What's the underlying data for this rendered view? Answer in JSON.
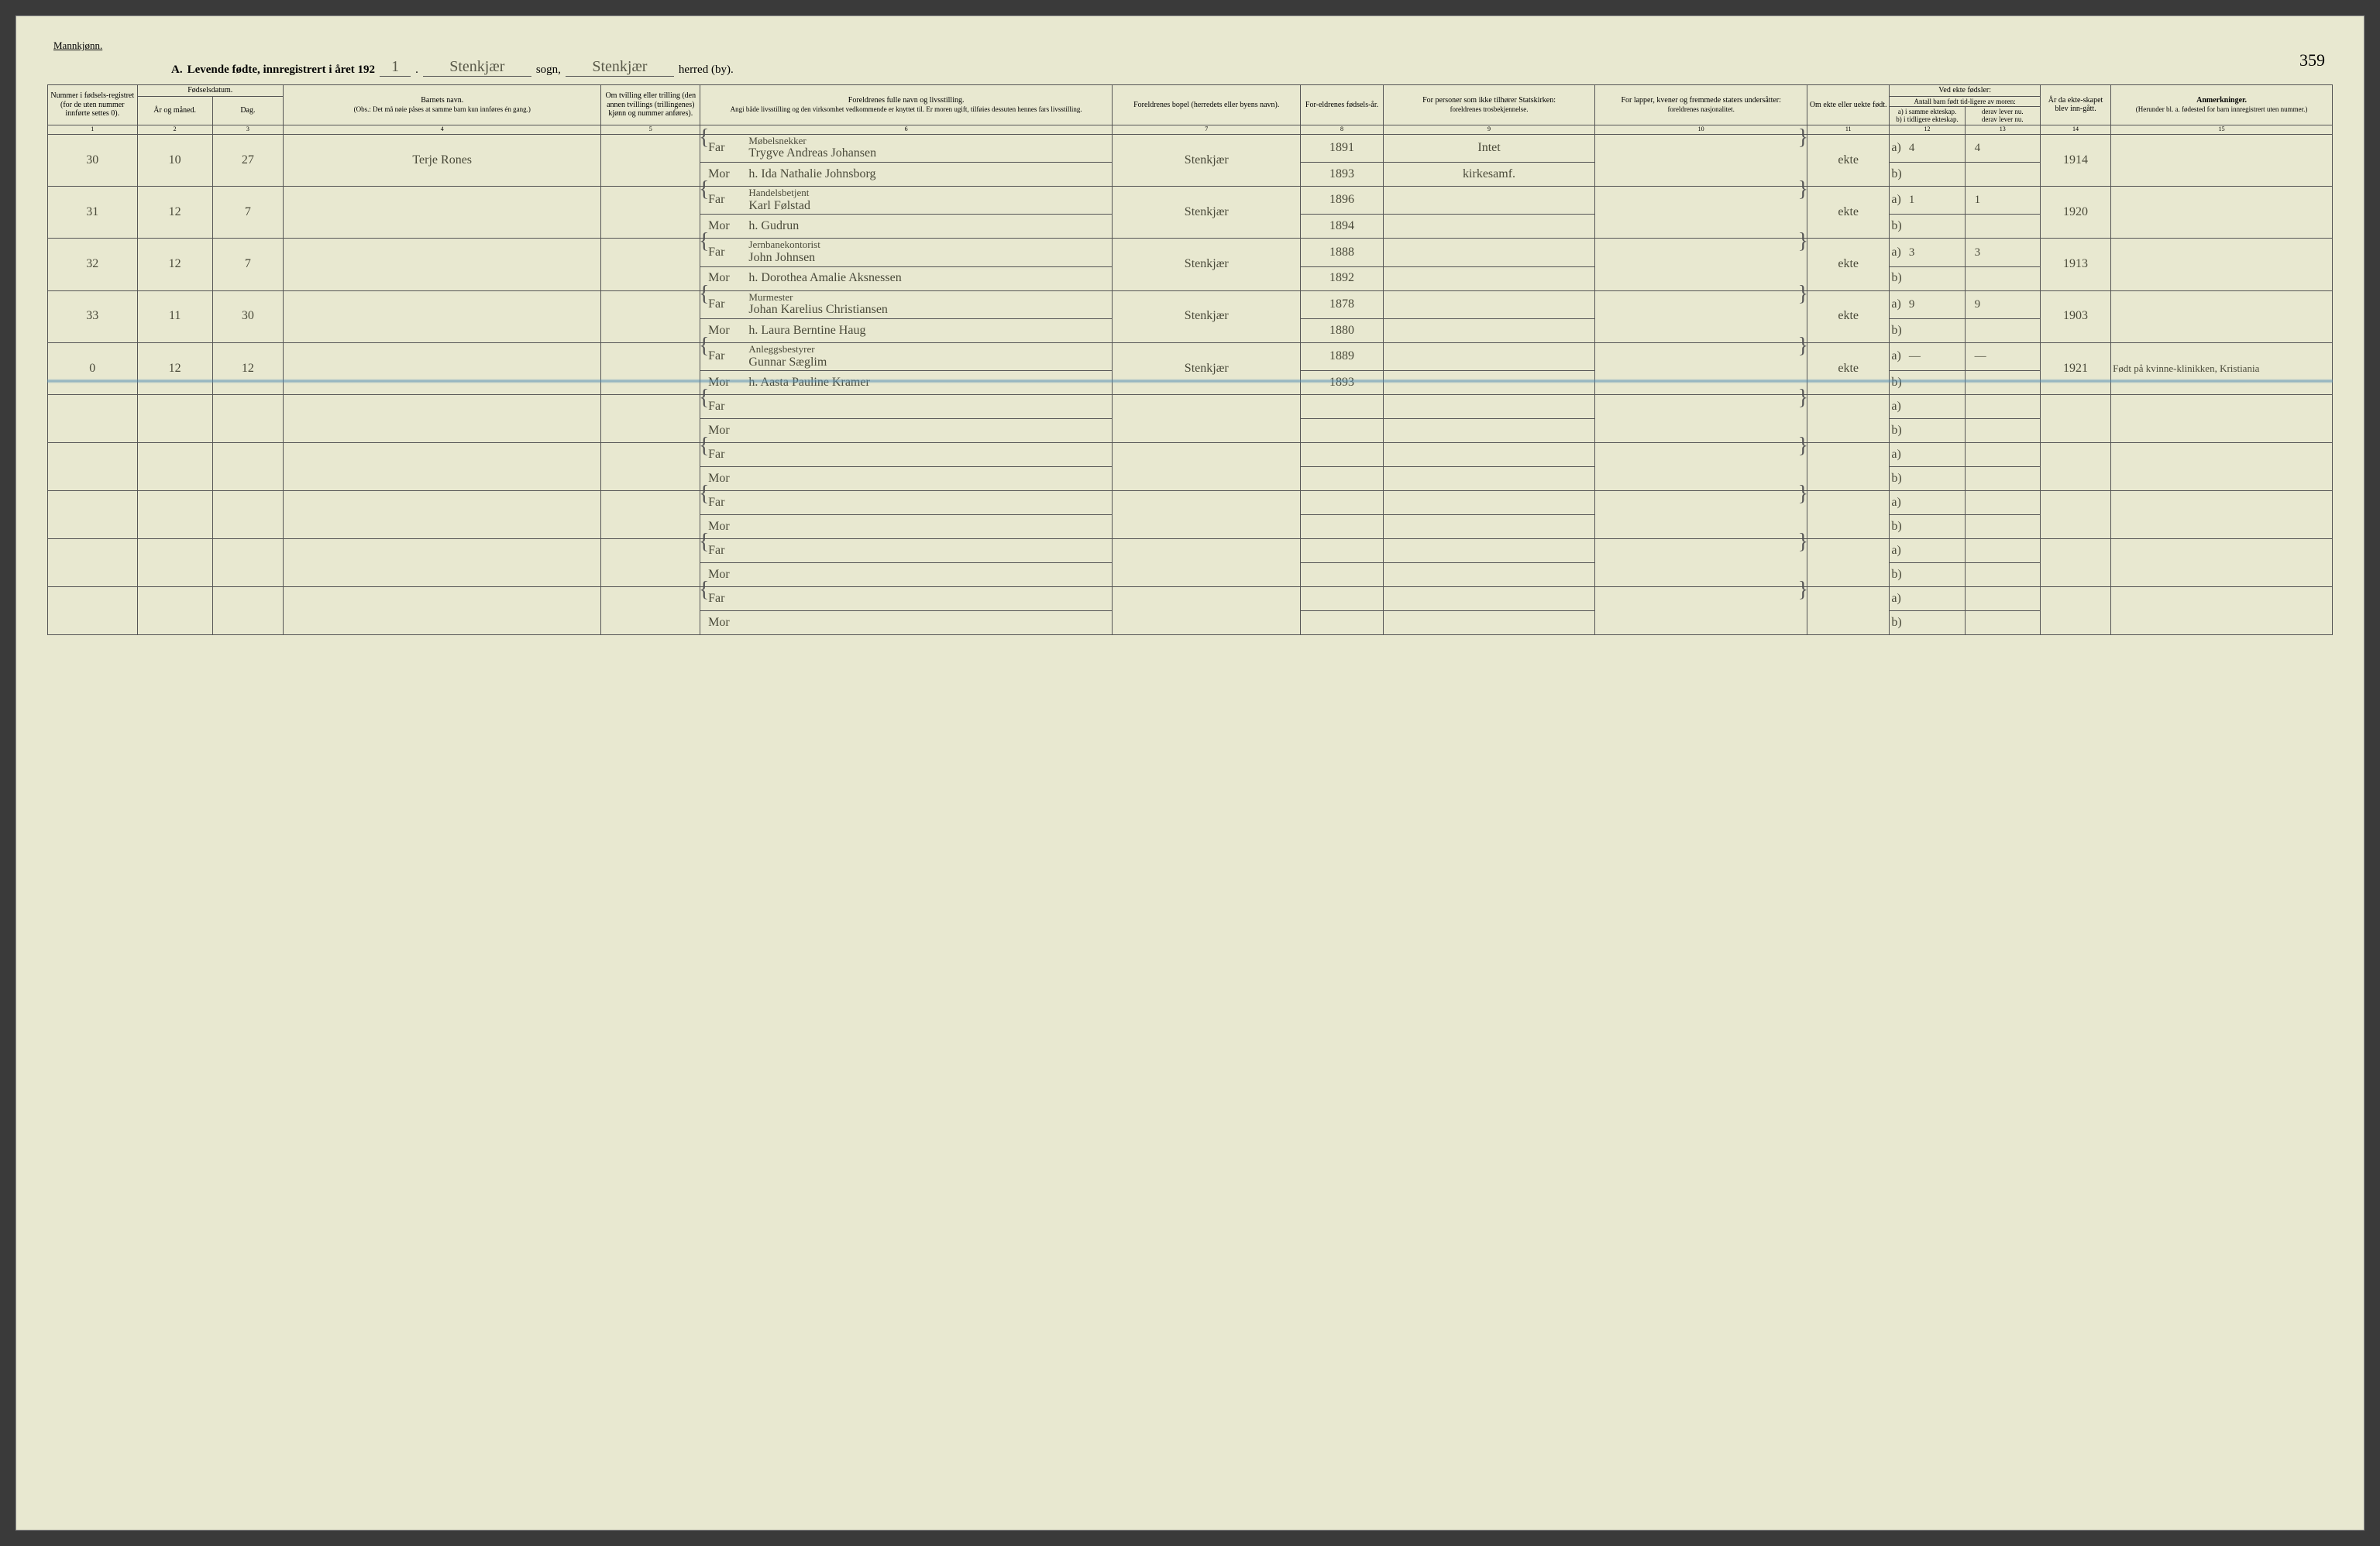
{
  "page": {
    "gender_label": "Mannkjønn.",
    "title_prefix": "A.",
    "title_main": "Levende fødte, innregistrert i året 192",
    "year_handwritten": "1",
    "sogn_label": "sogn,",
    "sogn_value": "Stenkjær",
    "herred_label": "herred (by).",
    "herred_value": "Stenkjær",
    "page_number": "359"
  },
  "headers": {
    "c1": "Nummer i fødsels-registret (for de uten nummer innførte settes 0).",
    "c2_group": "Fødselsdatum.",
    "c2a": "År og måned.",
    "c2b": "Dag.",
    "c4_top": "Barnets navn.",
    "c4_sub": "(Obs.: Det må nøie påses at samme barn kun innføres én gang.)",
    "c5": "Om tvilling eller trilling (den annen tvillings (trillingenes) kjønn og nummer anføres).",
    "c6_top": "Foreldrenes fulle navn og livsstilling.",
    "c6_sub": "Angi både livsstilling og den virksomhet vedkommende er knyttet til. Er moren ugift, tilføies dessuten hennes fars livsstilling.",
    "c7": "Foreldrenes bopel (herredets eller byens navn).",
    "c8": "For-eldrenes fødsels-år.",
    "c9_top": "For personer som ikke tilhører Statskirken:",
    "c9_sub": "foreldrenes trosbekjennelse.",
    "c10_top": "For lapper, kvener og fremmede staters undersåtter:",
    "c10_sub": "foreldrenes nasjonalitet.",
    "c11": "Om ekte eller uekte født.",
    "c12_top": "Ved ekte fødsler:",
    "c12_sub": "Antall barn født tid-ligere av moren:",
    "c12a": "a) i samme ekteskap.",
    "c12b": "b) i tidligere ekteskap.",
    "c13a": "derav lever nu.",
    "c13b": "derav lever nu.",
    "c14": "År da ekte-skapet blev inn-gått.",
    "c15_top": "Anmerkninger.",
    "c15_sub": "(Herunder bl. a. fødested for barn innregistrert uten nummer.)"
  },
  "colnums": [
    "1",
    "2",
    "3",
    "4",
    "5",
    "6",
    "7",
    "8",
    "9",
    "10",
    "11",
    "12",
    "13",
    "14",
    "15"
  ],
  "rows": [
    {
      "num": "30",
      "month": "10",
      "day": "27",
      "child": "Terje Rones",
      "far_occ": "Møbelsnekker",
      "far": "Trygve Andreas Johansen",
      "mor": "h. Ida Nathalie Johnsborg",
      "bopel": "Stenkjær",
      "far_year": "1891",
      "mor_year": "1893",
      "rel_far": "Intet",
      "rel_mor": "kirkesamf.",
      "ekte": "ekte",
      "a": "4",
      "a_lev": "4",
      "year_m": "1914",
      "anm": ""
    },
    {
      "num": "31",
      "month": "12",
      "day": "7",
      "child": "",
      "far_occ": "Handelsbetjent",
      "far": "Karl Følstad",
      "mor": "h. Gudrun",
      "bopel": "Stenkjær",
      "far_year": "1896",
      "mor_year": "1894",
      "rel_far": "",
      "rel_mor": "",
      "ekte": "ekte",
      "a": "1",
      "a_lev": "1",
      "year_m": "1920",
      "anm": ""
    },
    {
      "num": "32",
      "month": "12",
      "day": "7",
      "child": "",
      "far_occ": "Jernbanekontorist",
      "far": "John Johnsen",
      "mor": "h. Dorothea Amalie Aksnessen",
      "bopel": "Stenkjær",
      "far_year": "1888",
      "mor_year": "1892",
      "rel_far": "",
      "rel_mor": "",
      "ekte": "ekte",
      "a": "3",
      "a_lev": "3",
      "year_m": "1913",
      "anm": ""
    },
    {
      "num": "33",
      "month": "11",
      "day": "30",
      "child": "",
      "far_occ": "Murmester",
      "far": "Johan Karelius Christiansen",
      "mor": "h. Laura Berntine Haug",
      "bopel": "Stenkjær",
      "far_year": "1878",
      "mor_year": "1880",
      "rel_far": "",
      "rel_mor": "",
      "ekte": "ekte",
      "a": "9",
      "a_lev": "9",
      "year_m": "1903",
      "anm": ""
    },
    {
      "num": "0",
      "month": "12",
      "day": "12",
      "child": "",
      "far_occ": "Anleggsbestyrer",
      "far": "Gunnar Sæglim",
      "mor": "h. Aasta Pauline Kramer",
      "bopel": "Stenkjær",
      "far_year": "1889",
      "mor_year": "1893",
      "rel_far": "",
      "rel_mor": "",
      "ekte": "ekte",
      "a": "—",
      "a_lev": "—",
      "year_m": "1921",
      "anm": "Født på kvinne-klinikken, Kristiania"
    }
  ],
  "empty_rows": 5,
  "labels": {
    "far": "Far",
    "mor": "Mor",
    "a": "a)",
    "b": "b)"
  },
  "style": {
    "paper_color": "#e8e8d0",
    "line_color": "#555555",
    "ink_color": "#4a4a3a",
    "blue_line": "#508cb4",
    "header_font_pt": 10,
    "body_font_pt": 16,
    "col_widths_pct": [
      3.8,
      3.2,
      3.0,
      13.5,
      4.2,
      17.5,
      8.0,
      3.5,
      9.0,
      9.0,
      3.5,
      3.2,
      3.2,
      3.0,
      9.4
    ]
  }
}
